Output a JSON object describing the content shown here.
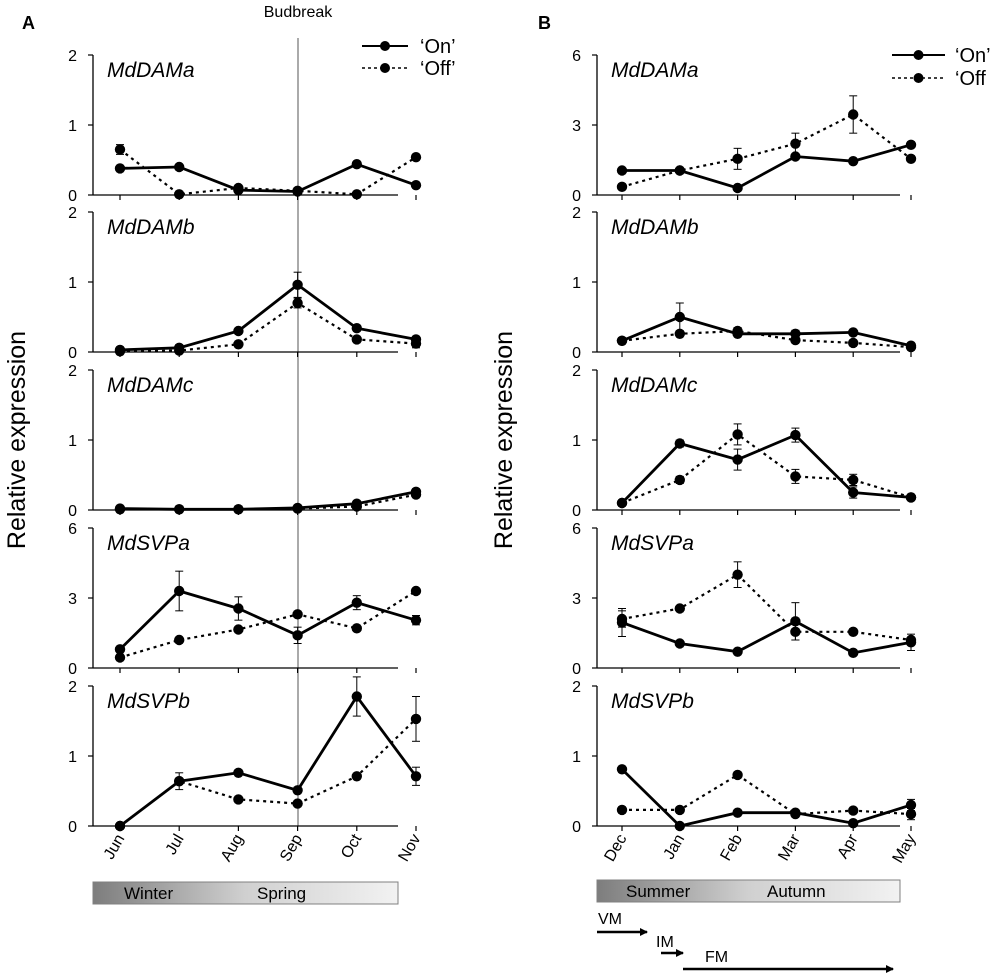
{
  "chart_data": [
    {
      "type": "line",
      "panel": "A",
      "budbreak_label": "Budbreak",
      "budbreak_after": "Sep",
      "ylabel": "Relative expression",
      "categories": [
        "Jun",
        "Jul",
        "Aug",
        "Sep",
        "Oct",
        "Nov"
      ],
      "legend": {
        "placement": "top-right",
        "entries": [
          "‘On’",
          "‘Off’"
        ]
      },
      "seasons": [
        "Winter",
        "Spring"
      ],
      "subplots": [
        {
          "gene": "MdDAMa",
          "ylim": [
            0,
            2
          ],
          "yticks": [
            "0",
            "1",
            "2"
          ],
          "series": [
            {
              "name": "‘On’",
              "values": [
                0.38,
                0.4,
                0.07,
                0.05,
                0.44,
                0.14
              ],
              "errors": [
                0,
                0,
                0,
                0,
                0,
                0
              ]
            },
            {
              "name": "‘Off’",
              "values": [
                0.65,
                0.01,
                0.1,
                0.06,
                0.01,
                0.54
              ],
              "errors": [
                0.07,
                0,
                0,
                0,
                0,
                0
              ]
            }
          ]
        },
        {
          "gene": "MdDAMb",
          "ylim": [
            0,
            2
          ],
          "yticks": [
            "0",
            "1",
            "2"
          ],
          "series": [
            {
              "name": "‘On’",
              "values": [
                0.03,
                0.06,
                0.3,
                0.96,
                0.34,
                0.18
              ],
              "errors": [
                0,
                0,
                0,
                0.18,
                0,
                0
              ]
            },
            {
              "name": "‘Off’",
              "values": [
                0.01,
                0.02,
                0.11,
                0.7,
                0.18,
                0.12
              ],
              "errors": [
                0,
                0,
                0,
                0.07,
                0,
                0.06
              ]
            }
          ]
        },
        {
          "gene": "MdDAMc",
          "ylim": [
            0,
            2
          ],
          "yticks": [
            "0",
            "1",
            "2"
          ],
          "series": [
            {
              "name": "‘On’",
              "values": [
                0.02,
                0.01,
                0.01,
                0.03,
                0.09,
                0.26
              ],
              "errors": [
                0,
                0,
                0,
                0,
                0,
                0
              ]
            },
            {
              "name": "‘Off’",
              "values": [
                0.01,
                0.01,
                0.01,
                0.02,
                0.05,
                0.22
              ],
              "errors": [
                0,
                0,
                0,
                0,
                0,
                0
              ]
            }
          ]
        },
        {
          "gene": "MdSVPa",
          "ylim": [
            0,
            6
          ],
          "yticks": [
            "0",
            "3",
            "6"
          ],
          "series": [
            {
              "name": "‘On’",
              "values": [
                0.8,
                3.3,
                2.55,
                1.4,
                2.8,
                2.05
              ],
              "errors": [
                0,
                0.85,
                0.5,
                0.35,
                0.3,
                0.2
              ]
            },
            {
              "name": "‘Off’",
              "values": [
                0.45,
                1.2,
                1.65,
                2.3,
                1.7,
                3.3
              ],
              "errors": [
                0,
                0,
                0,
                0,
                0,
                0
              ]
            }
          ]
        },
        {
          "gene": "MdSVPb",
          "ylim": [
            0,
            2
          ],
          "yticks": [
            "0",
            "1",
            "2"
          ],
          "series": [
            {
              "name": "‘On’",
              "values": [
                0.0,
                0.64,
                0.76,
                0.51,
                1.85,
                0.71
              ],
              "errors": [
                0,
                0.12,
                0,
                0,
                0.28,
                0.13
              ]
            },
            {
              "name": "‘Off’",
              "values": [
                0.0,
                0.64,
                0.38,
                0.32,
                0.71,
                1.53
              ],
              "errors": [
                0,
                0,
                0,
                0,
                0,
                0.32
              ]
            }
          ]
        }
      ]
    },
    {
      "type": "line",
      "panel": "B",
      "ylabel": "Relative expression",
      "categories": [
        "Dec",
        "Jan",
        "Feb",
        "Mar",
        "Apr",
        "May"
      ],
      "legend": {
        "placement": "top-right",
        "entries": [
          "‘On’",
          "‘Off"
        ]
      },
      "seasons": [
        "Summer",
        "Autumn"
      ],
      "phases": [
        {
          "label": "VM",
          "from": "Dec",
          "to": "Jan"
        },
        {
          "label": "IM",
          "from": "Jan",
          "to": "Feb"
        },
        {
          "label": "FM",
          "from": "Feb",
          "to": "May"
        }
      ],
      "subplots": [
        {
          "gene": "MdDAMa",
          "ylim": [
            0,
            6
          ],
          "yticks": [
            "0",
            "3",
            "6"
          ],
          "series": [
            {
              "name": "‘On’",
              "values": [
                1.05,
                1.05,
                0.3,
                1.65,
                1.45,
                2.15
              ],
              "errors": [
                0,
                0,
                0,
                0,
                0,
                0
              ]
            },
            {
              "name": "‘Off’",
              "values": [
                0.35,
                1.05,
                1.55,
                2.2,
                3.45,
                1.55
              ],
              "errors": [
                0,
                0,
                0.45,
                0.45,
                0.8,
                0
              ]
            }
          ]
        },
        {
          "gene": "MdDAMb",
          "ylim": [
            0,
            2
          ],
          "yticks": [
            "0",
            "1",
            "2"
          ],
          "series": [
            {
              "name": "‘On’",
              "values": [
                0.16,
                0.5,
                0.26,
                0.26,
                0.28,
                0.09
              ],
              "errors": [
                0,
                0.2,
                0,
                0.05,
                0,
                0
              ]
            },
            {
              "name": "‘Off’",
              "values": [
                0.16,
                0.26,
                0.3,
                0.17,
                0.13,
                0.07
              ],
              "errors": [
                0,
                0,
                0.05,
                0,
                0,
                0
              ]
            }
          ]
        },
        {
          "gene": "MdDAMc",
          "ylim": [
            0,
            2
          ],
          "yticks": [
            "0",
            "1",
            "2"
          ],
          "series": [
            {
              "name": "‘On’",
              "values": [
                0.1,
                0.95,
                0.72,
                1.07,
                0.25,
                0.18
              ],
              "errors": [
                0,
                0.05,
                0.15,
                0.1,
                0.08,
                0
              ]
            },
            {
              "name": "‘Off’",
              "values": [
                0.1,
                0.43,
                1.08,
                0.48,
                0.43,
                0.18
              ],
              "errors": [
                0,
                0.05,
                0.15,
                0.1,
                0.08,
                0
              ]
            }
          ]
        },
        {
          "gene": "MdSVPa",
          "ylim": [
            0,
            6
          ],
          "yticks": [
            "0",
            "3",
            "6"
          ],
          "series": [
            {
              "name": "‘On’",
              "values": [
                1.95,
                1.05,
                0.7,
                2.0,
                0.65,
                1.1
              ],
              "errors": [
                0.6,
                0,
                0,
                0.8,
                0,
                0.35
              ]
            },
            {
              "name": "‘Off’",
              "values": [
                2.1,
                2.55,
                4.0,
                1.55,
                1.55,
                1.2
              ],
              "errors": [
                0.35,
                0,
                0.55,
                0.35,
                0,
                0
              ]
            }
          ]
        },
        {
          "gene": "MdSVPb",
          "ylim": [
            0,
            2
          ],
          "yticks": [
            "0",
            "1",
            "2"
          ],
          "series": [
            {
              "name": "‘On’",
              "values": [
                0.81,
                0.0,
                0.19,
                0.19,
                0.04,
                0.3
              ],
              "errors": [
                0.04,
                0,
                0,
                0,
                0,
                0.08
              ]
            },
            {
              "name": "‘Off’",
              "values": [
                0.23,
                0.23,
                0.73,
                0.17,
                0.22,
                0.17
              ],
              "errors": [
                0.04,
                0,
                0.04,
                0,
                0,
                0.08
              ]
            }
          ]
        }
      ]
    }
  ]
}
